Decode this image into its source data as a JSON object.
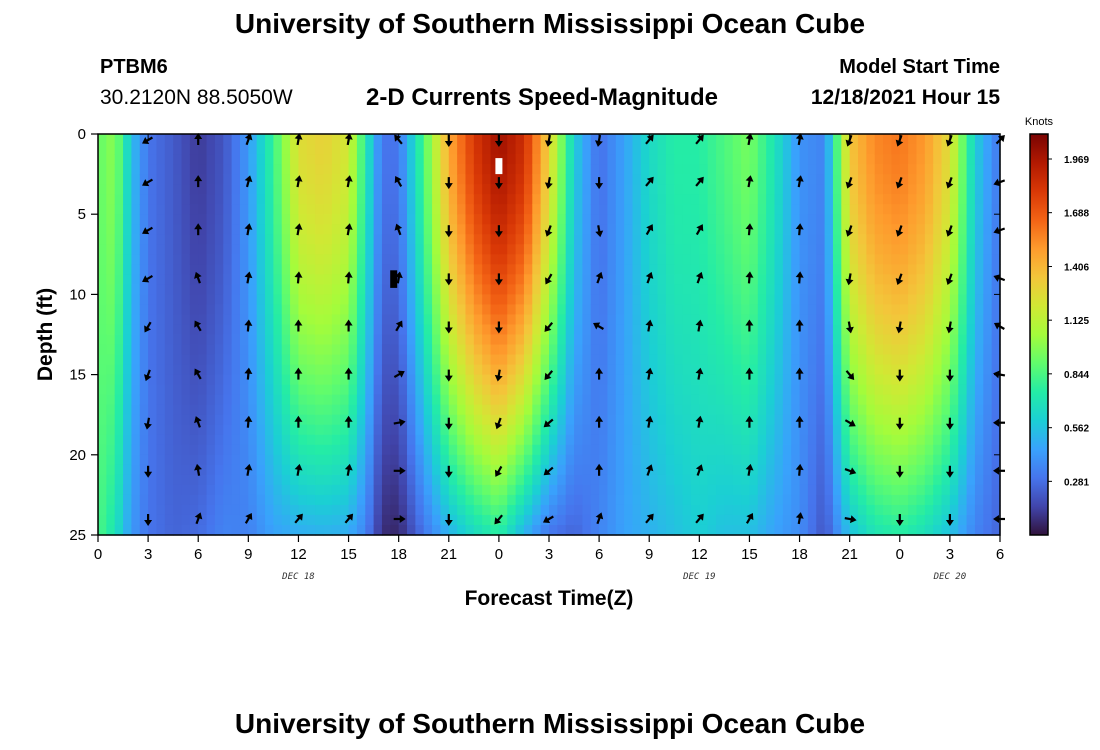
{
  "header": {
    "title": "University of Southern Mississippi Ocean Cube",
    "station": "PTBM6",
    "coords": "30.2120N  88.5050W",
    "subtitle": "2-D Currents Speed-Magnitude",
    "model_start_label": "Model Start Time",
    "model_start_value": "12/18/2021 Hour 15"
  },
  "footer": {
    "title": "University of Southern Mississippi Ocean Cube"
  },
  "chart_data": {
    "type": "heatmap",
    "title": "2-D Currents Speed-Magnitude",
    "xlabel": "Forecast Time(Z)",
    "ylabel": "Depth (ft)",
    "x_unit": "hours since 12/18 00Z",
    "x_range": [
      0,
      54
    ],
    "x_ticks": [
      0,
      3,
      6,
      9,
      12,
      15,
      18,
      21,
      24,
      27,
      30,
      33,
      36,
      39,
      42,
      45,
      48,
      51,
      54
    ],
    "x_tick_labels": [
      "0",
      "3",
      "6",
      "9",
      "12",
      "15",
      "18",
      "21",
      "0",
      "3",
      "6",
      "9",
      "12",
      "15",
      "18",
      "21",
      "0",
      "3",
      "6"
    ],
    "day_labels": [
      {
        "text": "DEC 18",
        "at": 12
      },
      {
        "text": "DEC 19",
        "at": 36
      },
      {
        "text": "DEC 20",
        "at": 51
      }
    ],
    "y_range": [
      0,
      25
    ],
    "y_ticks": [
      0,
      5,
      10,
      15,
      20,
      25
    ],
    "y_tick_labels": [
      "0",
      "5",
      "10",
      "15",
      "20",
      "25"
    ],
    "colorbar": {
      "title": "Knots",
      "range": [
        0,
        2.1
      ],
      "ticks": [
        1.969,
        1.688,
        1.406,
        1.125,
        0.844,
        0.562,
        0.281
      ],
      "tick_labels": [
        "1.969",
        "1.688",
        "1.406",
        "1.125",
        "0.844",
        "0.562",
        "0.281"
      ],
      "colors": [
        "#30123b",
        "#4145ab",
        "#4675ed",
        "#39a2fc",
        "#1bcfd4",
        "#24eca6",
        "#61fc6c",
        "#a4fc3b",
        "#d1e834",
        "#f3c63a",
        "#fe9b2d",
        "#f36315",
        "#d93806",
        "#b11901",
        "#7a0403"
      ]
    },
    "speed_profile_knots": [
      {
        "t": 0,
        "surface": 0.9,
        "bottom": 0.85
      },
      {
        "t": 1,
        "surface": 1.0,
        "bottom": 0.7
      },
      {
        "t": 2,
        "surface": 0.55,
        "bottom": 0.42
      },
      {
        "t": 3,
        "surface": 0.3,
        "bottom": 0.3
      },
      {
        "t": 4.5,
        "surface": 0.22,
        "bottom": 0.25
      },
      {
        "t": 6,
        "surface": 0.12,
        "bottom": 0.27
      },
      {
        "t": 7.5,
        "surface": 0.2,
        "bottom": 0.35
      },
      {
        "t": 9,
        "surface": 0.42,
        "bottom": 0.34
      },
      {
        "t": 10.5,
        "surface": 0.8,
        "bottom": 0.45
      },
      {
        "t": 12,
        "surface": 1.25,
        "bottom": 0.48
      },
      {
        "t": 13.5,
        "surface": 1.3,
        "bottom": 0.5
      },
      {
        "t": 15,
        "surface": 1.2,
        "bottom": 0.48
      },
      {
        "t": 16,
        "surface": 0.75,
        "bottom": 0.35
      },
      {
        "t": 17,
        "surface": 0.3,
        "bottom": 0.08
      },
      {
        "t": 18,
        "surface": 0.3,
        "bottom": 0.06
      },
      {
        "t": 19.5,
        "surface": 0.85,
        "bottom": 0.3
      },
      {
        "t": 21,
        "surface": 1.45,
        "bottom": 0.5
      },
      {
        "t": 22.5,
        "surface": 1.8,
        "bottom": 0.65
      },
      {
        "t": 24,
        "surface": 2.0,
        "bottom": 0.75
      },
      {
        "t": 25.5,
        "surface": 1.85,
        "bottom": 0.5
      },
      {
        "t": 27,
        "surface": 1.3,
        "bottom": 0.3
      },
      {
        "t": 28.5,
        "surface": 0.6,
        "bottom": 0.25
      },
      {
        "t": 30,
        "surface": 0.28,
        "bottom": 0.35
      },
      {
        "t": 31.5,
        "surface": 0.45,
        "bottom": 0.45
      },
      {
        "t": 33,
        "surface": 0.65,
        "bottom": 0.5
      },
      {
        "t": 34.5,
        "surface": 0.75,
        "bottom": 0.55
      },
      {
        "t": 36,
        "surface": 0.75,
        "bottom": 0.6
      },
      {
        "t": 37.5,
        "surface": 0.85,
        "bottom": 0.55
      },
      {
        "t": 39,
        "surface": 0.95,
        "bottom": 0.55
      },
      {
        "t": 40.5,
        "surface": 0.7,
        "bottom": 0.45
      },
      {
        "t": 42,
        "surface": 0.4,
        "bottom": 0.38
      },
      {
        "t": 43.5,
        "surface": 0.35,
        "bottom": 0.2
      },
      {
        "t": 45,
        "surface": 1.35,
        "bottom": 0.55
      },
      {
        "t": 46.5,
        "surface": 1.55,
        "bottom": 0.7
      },
      {
        "t": 48,
        "surface": 1.6,
        "bottom": 0.75
      },
      {
        "t": 49.5,
        "surface": 1.5,
        "bottom": 0.68
      },
      {
        "t": 51,
        "surface": 1.25,
        "bottom": 0.55
      },
      {
        "t": 52.5,
        "surface": 0.6,
        "bottom": 0.35
      },
      {
        "t": 54,
        "surface": 0.3,
        "bottom": 0.25
      }
    ],
    "vector_times": [
      3,
      6,
      9,
      12,
      15,
      18,
      21,
      24,
      27,
      30,
      33,
      36,
      39,
      42,
      45,
      48,
      51,
      54
    ],
    "vector_depths": [
      0,
      3,
      6,
      9,
      12,
      15,
      18,
      21,
      24
    ],
    "vector_direction_deg": [
      [
        240,
        240,
        240,
        240,
        210,
        200,
        190,
        180,
        180
      ],
      [
        0,
        0,
        0,
        340,
        330,
        330,
        340,
        350,
        20
      ],
      [
        20,
        15,
        10,
        10,
        5,
        5,
        5,
        10,
        30
      ],
      [
        10,
        10,
        10,
        5,
        0,
        0,
        0,
        10,
        40
      ],
      [
        10,
        10,
        10,
        5,
        0,
        0,
        0,
        10,
        40
      ],
      [
        320,
        330,
        340,
        10,
        30,
        60,
        80,
        90,
        90
      ],
      [
        180,
        180,
        180,
        180,
        180,
        180,
        180,
        180,
        180
      ],
      [
        180,
        180,
        180,
        180,
        180,
        190,
        200,
        210,
        220
      ],
      [
        190,
        190,
        200,
        210,
        220,
        220,
        230,
        230,
        240
      ],
      [
        190,
        180,
        170,
        20,
        300,
        0,
        0,
        0,
        20
      ],
      [
        40,
        40,
        30,
        20,
        10,
        10,
        10,
        20,
        40
      ],
      [
        40,
        40,
        30,
        20,
        10,
        10,
        10,
        20,
        40
      ],
      [
        10,
        10,
        5,
        5,
        0,
        0,
        0,
        10,
        30
      ],
      [
        10,
        10,
        5,
        5,
        0,
        0,
        0,
        5,
        10
      ],
      [
        200,
        200,
        200,
        190,
        170,
        140,
        120,
        110,
        100
      ],
      [
        200,
        200,
        200,
        200,
        190,
        180,
        180,
        180,
        180
      ],
      [
        200,
        200,
        200,
        200,
        190,
        180,
        180,
        180,
        180
      ],
      [
        45,
        250,
        250,
        290,
        300,
        280,
        270,
        270,
        270
      ]
    ],
    "missing_markers": [
      {
        "t": 24,
        "depth_start": 1.5,
        "depth_end": 2.5,
        "color": "#ffffff"
      },
      {
        "t": 17.7,
        "depth_start": 8.5,
        "depth_end": 9.6,
        "color": "#000000"
      }
    ]
  }
}
